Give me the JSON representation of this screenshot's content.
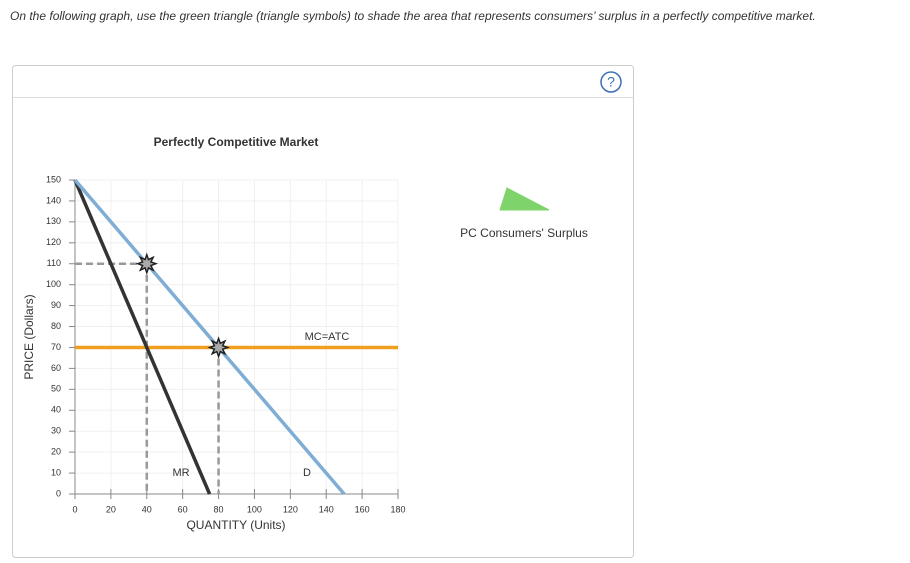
{
  "instruction": "On the following graph, use the green triangle (triangle symbols) to shade the area that represents consumers’ surplus in a perfectly competitive market.",
  "help_button": "?",
  "chart_data": {
    "type": "line",
    "title": "Perfectly Competitive Market",
    "x_label": "QUANTITY (Units)",
    "y_label": "PRICE (Dollars)",
    "xlim": [
      0,
      180
    ],
    "xticks": [
      0,
      20,
      40,
      60,
      80,
      100,
      120,
      140,
      160,
      180
    ],
    "ylim": [
      0,
      150
    ],
    "yticks": [
      0,
      10,
      20,
      30,
      40,
      50,
      60,
      70,
      80,
      90,
      100,
      110,
      120,
      130,
      140,
      150
    ],
    "grid": true,
    "series": [
      {
        "name": "MC=ATC",
        "color": "#f0a01e",
        "x": [
          0,
          180
        ],
        "values": [
          70,
          70
        ]
      },
      {
        "name": "MR",
        "color": "#333333",
        "x": [
          0,
          75
        ],
        "values": [
          150,
          0
        ]
      },
      {
        "name": "D",
        "color": "#7fadd6",
        "x": [
          0,
          150
        ],
        "values": [
          150,
          0
        ]
      }
    ],
    "markers": {
      "x": [
        40,
        80
      ],
      "values": [
        110,
        70
      ]
    },
    "legend": {
      "label": "PC Consumers' Surplus",
      "color": "#7fd36b"
    }
  }
}
